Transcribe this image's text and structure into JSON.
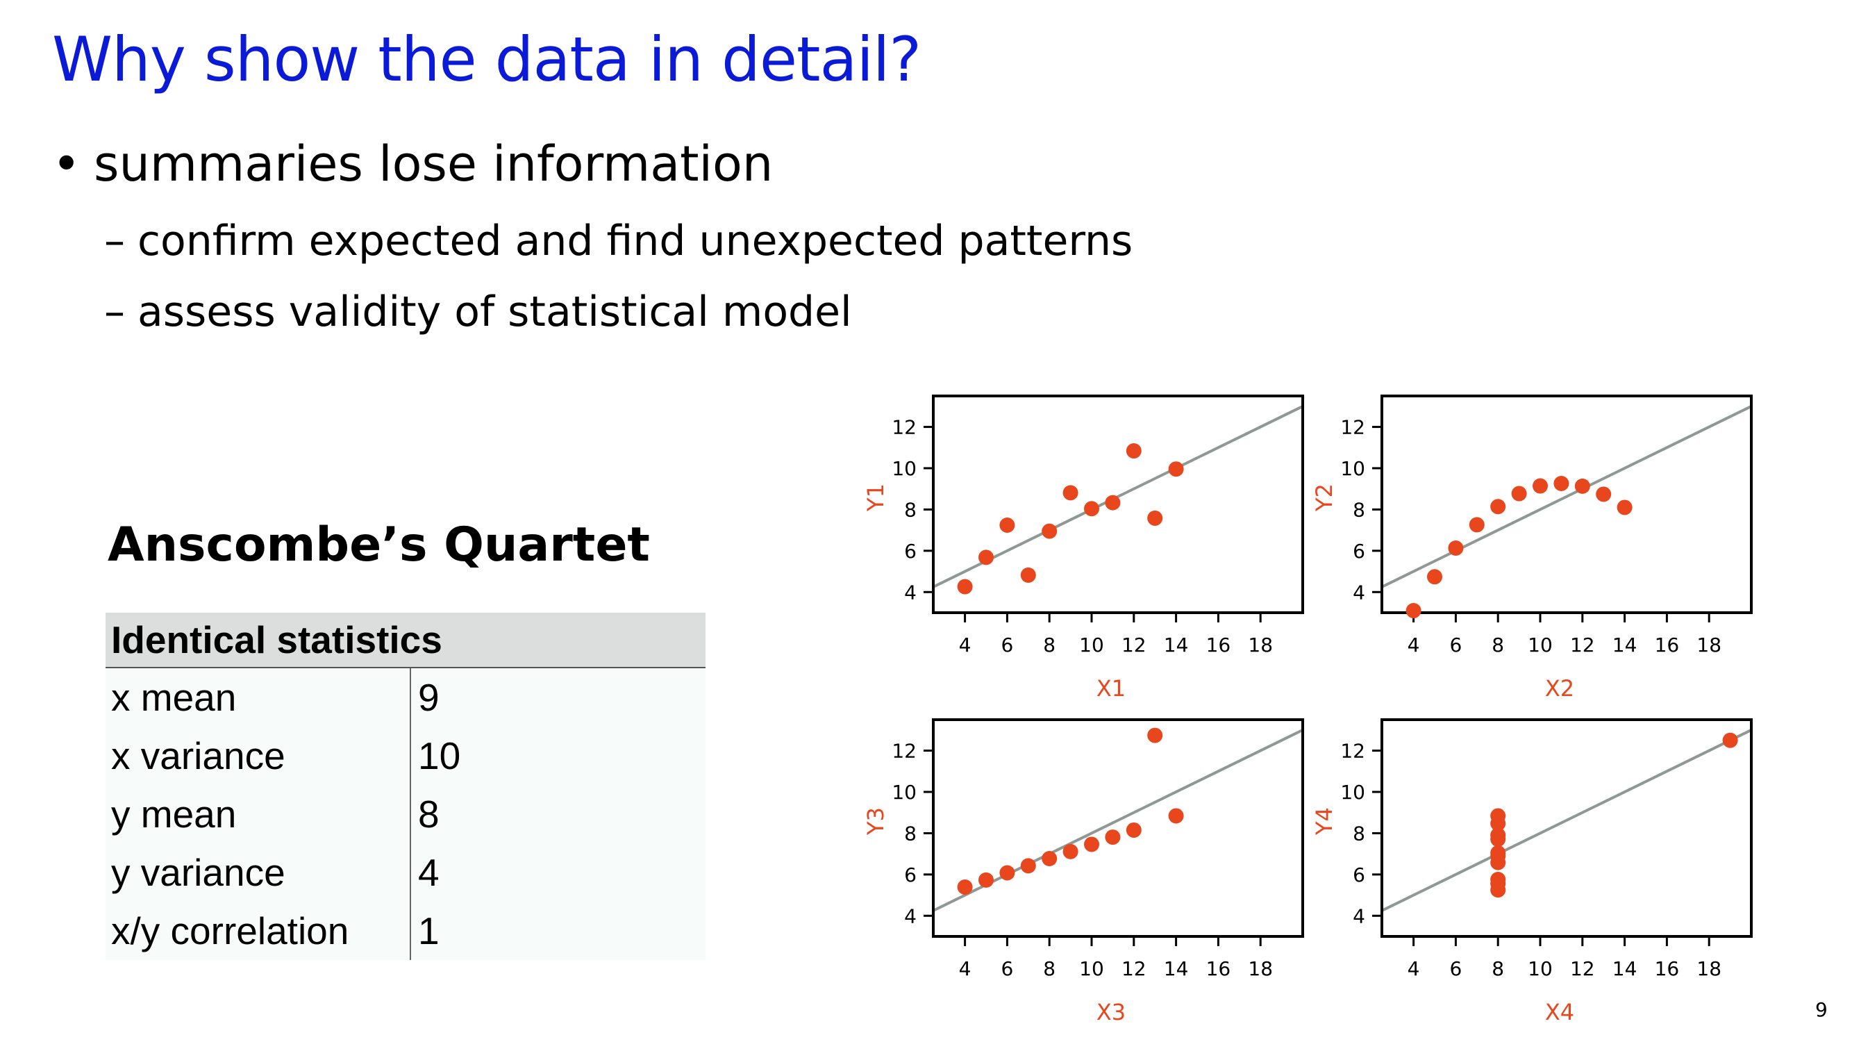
{
  "slide": {
    "title": "Why show the data in detail?",
    "bullet": "summaries lose information",
    "bullet_marker": "•",
    "sub_marker": "–",
    "subbullets": [
      "confirm expected and find unexpected patterns",
      "assess validity of statistical model"
    ],
    "page_number": "9"
  },
  "quartet": {
    "title": "Anscombe’s Quartet",
    "table_header": "Identical statistics",
    "rows": [
      {
        "label": "x mean",
        "value": "9"
      },
      {
        "label": "x variance",
        "value": "10"
      },
      {
        "label": "y mean",
        "value": "8"
      },
      {
        "label": "y variance",
        "value": "4"
      },
      {
        "label": "x/y correlation",
        "value": "1"
      }
    ]
  },
  "colors": {
    "title": "#0a1ad6",
    "points": "#e8461c",
    "fit_line": "#8f9893",
    "axis_label": "#e8461c"
  },
  "chart_data": [
    {
      "type": "scatter",
      "xlabel": "X1",
      "ylabel": "Y1",
      "xlim": [
        2.5,
        20
      ],
      "ylim": [
        3,
        13.5
      ],
      "xticks": [
        4,
        6,
        8,
        10,
        12,
        14,
        16,
        18
      ],
      "yticks": [
        4,
        6,
        8,
        10,
        12
      ],
      "fit": {
        "intercept": 3,
        "slope": 0.5
      },
      "x": [
        10,
        8,
        13,
        9,
        11,
        14,
        6,
        4,
        12,
        7,
        5
      ],
      "y": [
        8.04,
        6.95,
        7.58,
        8.81,
        8.33,
        9.96,
        7.24,
        4.26,
        10.84,
        4.82,
        5.68
      ]
    },
    {
      "type": "scatter",
      "xlabel": "X2",
      "ylabel": "Y2",
      "xlim": [
        2.5,
        20
      ],
      "ylim": [
        3,
        13.5
      ],
      "xticks": [
        4,
        6,
        8,
        10,
        12,
        14,
        16,
        18
      ],
      "yticks": [
        4,
        6,
        8,
        10,
        12
      ],
      "fit": {
        "intercept": 3,
        "slope": 0.5
      },
      "x": [
        10,
        8,
        13,
        9,
        11,
        14,
        6,
        4,
        12,
        7,
        5
      ],
      "y": [
        9.14,
        8.14,
        8.74,
        8.77,
        9.26,
        8.1,
        6.13,
        3.1,
        9.13,
        7.26,
        4.74
      ]
    },
    {
      "type": "scatter",
      "xlabel": "X3",
      "ylabel": "Y3",
      "xlim": [
        2.5,
        20
      ],
      "ylim": [
        3,
        13.5
      ],
      "xticks": [
        4,
        6,
        8,
        10,
        12,
        14,
        16,
        18
      ],
      "yticks": [
        4,
        6,
        8,
        10,
        12
      ],
      "fit": {
        "intercept": 3,
        "slope": 0.5
      },
      "x": [
        10,
        8,
        13,
        9,
        11,
        14,
        6,
        4,
        12,
        7,
        5
      ],
      "y": [
        7.46,
        6.77,
        12.74,
        7.11,
        7.81,
        8.84,
        6.08,
        5.39,
        8.15,
        6.42,
        5.73
      ]
    },
    {
      "type": "scatter",
      "xlabel": "X4",
      "ylabel": "Y4",
      "xlim": [
        2.5,
        20
      ],
      "ylim": [
        3,
        13.5
      ],
      "xticks": [
        4,
        6,
        8,
        10,
        12,
        14,
        16,
        18
      ],
      "yticks": [
        4,
        6,
        8,
        10,
        12
      ],
      "fit": {
        "intercept": 3,
        "slope": 0.5
      },
      "x": [
        8,
        8,
        8,
        8,
        8,
        8,
        8,
        19,
        8,
        8,
        8
      ],
      "y": [
        6.58,
        5.76,
        7.71,
        8.84,
        8.47,
        7.04,
        5.25,
        12.5,
        5.56,
        7.91,
        6.89
      ]
    }
  ]
}
